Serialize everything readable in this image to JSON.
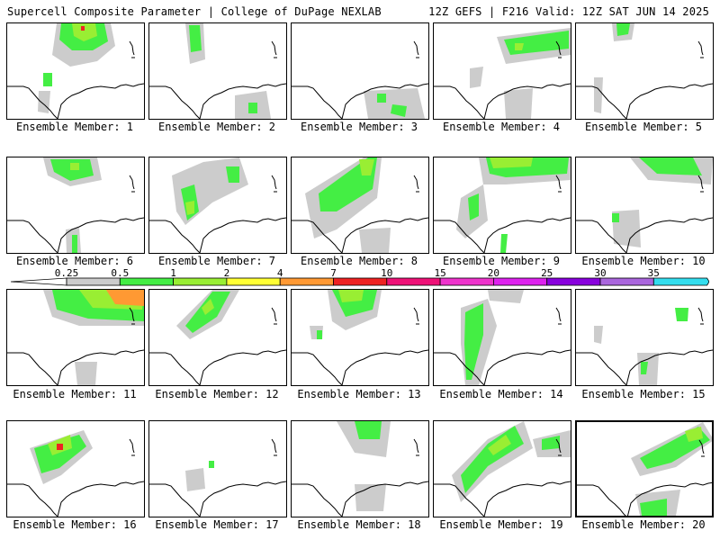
{
  "header": {
    "left": "Supercell Composite Parameter | College of DuPage NEXLAB",
    "right": "12Z GEFS | F216 Valid: 12Z SAT JUN 14 2025"
  },
  "colorbar": {
    "ticks": [
      "0.25",
      "0.5",
      "1",
      "2",
      "4",
      "7",
      "10",
      "15",
      "20",
      "25",
      "30",
      "35"
    ],
    "colors": [
      "#cccccc",
      "#44ee44",
      "#99ee33",
      "#ffff33",
      "#ff9933",
      "#ee2222",
      "#ee1177",
      "#ee33cc",
      "#dd22ee",
      "#8800dd",
      "#aa66dd",
      "#33ddee"
    ]
  },
  "panels": [
    {
      "label": "Ensemble Member: 1"
    },
    {
      "label": "Ensemble Member: 2"
    },
    {
      "label": "Ensemble Member: 3"
    },
    {
      "label": "Ensemble Member: 4"
    },
    {
      "label": "Ensemble Member: 5"
    },
    {
      "label": "Ensemble Member: 6"
    },
    {
      "label": "Ensemble Member: 7"
    },
    {
      "label": "Ensemble Member: 8"
    },
    {
      "label": "Ensemble Member: 9"
    },
    {
      "label": "Ensemble Member: 10"
    },
    {
      "label": "Ensemble Member: 11"
    },
    {
      "label": "Ensemble Member: 12"
    },
    {
      "label": "Ensemble Member: 13"
    },
    {
      "label": "Ensemble Member: 14"
    },
    {
      "label": "Ensemble Member: 15"
    },
    {
      "label": "Ensemble Member: 16"
    },
    {
      "label": "Ensemble Member: 17"
    },
    {
      "label": "Ensemble Member: 18"
    },
    {
      "label": "Ensemble Member: 19"
    },
    {
      "label": "Ensemble Member: 20"
    }
  ]
}
